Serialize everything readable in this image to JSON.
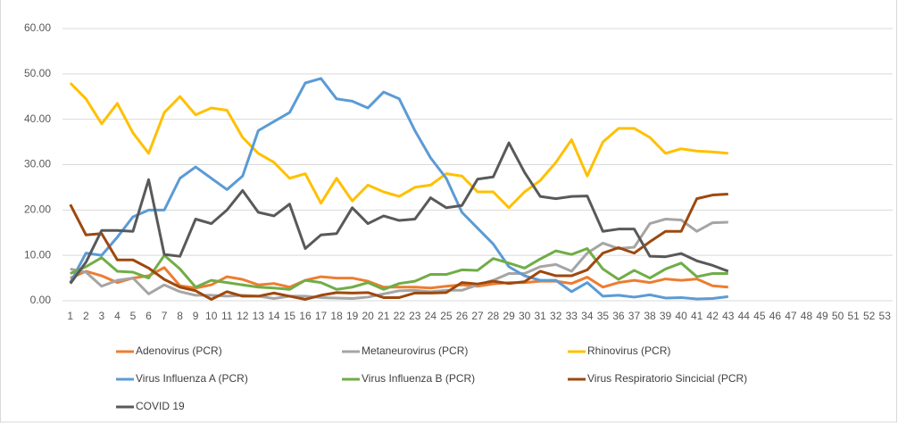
{
  "chart_data": {
    "type": "line",
    "categories": [
      "1",
      "2",
      "3",
      "4",
      "5",
      "6",
      "7",
      "8",
      "9",
      "10",
      "11",
      "12",
      "13",
      "14",
      "15",
      "16",
      "17",
      "18",
      "19",
      "20",
      "21",
      "22",
      "23",
      "24",
      "25",
      "26",
      "27",
      "28",
      "29",
      "30",
      "31",
      "32",
      "33",
      "34",
      "35",
      "36",
      "37",
      "38",
      "39",
      "40",
      "41",
      "42",
      "43",
      "44",
      "45",
      "46",
      "47",
      "48",
      "49",
      "50",
      "51",
      "52",
      "53"
    ],
    "ylim": [
      0,
      60
    ],
    "yticks": [
      {
        "value": 0,
        "label": "0.00"
      },
      {
        "value": 10,
        "label": "10.00"
      },
      {
        "value": 20,
        "label": "20.00"
      },
      {
        "value": 30,
        "label": "30.00"
      },
      {
        "value": 40,
        "label": "40.00"
      },
      {
        "value": 50,
        "label": "50.00"
      },
      {
        "value": 60,
        "label": "60.00"
      }
    ],
    "grid": true,
    "series": [
      {
        "name": "Adenovirus (PCR)",
        "color": "#ed7d31",
        "values": [
          5,
          6.5,
          5.5,
          4,
          5,
          5.5,
          7.3,
          3.3,
          2.8,
          3.5,
          5.3,
          4.7,
          3.5,
          3.8,
          3,
          4.5,
          5.3,
          5,
          5,
          4.3,
          3,
          3,
          3,
          2.8,
          3.2,
          3.5,
          3.2,
          3.7,
          4,
          4,
          4.3,
          4.3,
          3.8,
          5.2,
          3,
          4,
          4.5,
          4,
          4.8,
          4.5,
          4.8,
          3.3,
          3,
          null,
          null,
          null,
          null,
          null,
          null,
          null,
          null,
          null,
          null
        ]
      },
      {
        "name": "Metaneurovirus (PCR)",
        "color": "#a5a5a5",
        "values": [
          7,
          6.3,
          3.2,
          4.5,
          5,
          1.5,
          3.5,
          2,
          1.2,
          1.2,
          1,
          1.2,
          1,
          0.5,
          1,
          1,
          0.7,
          0.6,
          0.5,
          0.8,
          1.5,
          2.2,
          2.3,
          2,
          2.3,
          2.3,
          3.5,
          4.5,
          6,
          6,
          7.5,
          8,
          6.5,
          10.5,
          12.7,
          11.5,
          11.8,
          17,
          18,
          17.8,
          15.3,
          17.2,
          17.3,
          null,
          null,
          null,
          null,
          null,
          null,
          null,
          null,
          null,
          null
        ]
      },
      {
        "name": "Rhinovirus (PCR)",
        "color": "#ffc000",
        "values": [
          48,
          44.5,
          39,
          43.5,
          37,
          32.5,
          41.5,
          45,
          41,
          42.5,
          42,
          36,
          32.5,
          30.5,
          27,
          28,
          21.5,
          27,
          22,
          25.5,
          24,
          23,
          25,
          25.5,
          28,
          27.5,
          24,
          24,
          20.5,
          24,
          26.5,
          30.5,
          35.5,
          27.5,
          35,
          38,
          38,
          36,
          32.5,
          33.5,
          33,
          32.8,
          32.5,
          null,
          null,
          null,
          null,
          null,
          null,
          null,
          null,
          null,
          null
        ]
      },
      {
        "name": "Virus Influenza A (PCR)",
        "color": "#5b9bd5",
        "values": [
          4,
          10.5,
          10,
          14,
          18.5,
          20,
          20,
          27,
          29.5,
          27,
          24.5,
          27.5,
          37.5,
          39.5,
          41.5,
          48,
          49,
          44.5,
          44,
          42.5,
          46,
          44.5,
          37.5,
          31.5,
          27,
          19.5,
          16,
          12.5,
          7.5,
          5.5,
          4.5,
          4.5,
          2,
          4,
          1,
          1.2,
          0.8,
          1.3,
          0.6,
          0.7,
          0.4,
          0.5,
          0.9,
          null,
          null,
          null,
          null,
          null,
          null,
          null,
          null,
          null,
          null
        ]
      },
      {
        "name": "Virus Influenza B (PCR)",
        "color": "#70ad47",
        "values": [
          6,
          7.5,
          9.5,
          6.5,
          6.3,
          5,
          10,
          7,
          3,
          4.5,
          4,
          3.5,
          3,
          2.8,
          2.5,
          4.5,
          4,
          2.5,
          3,
          4,
          2.5,
          3.8,
          4.3,
          5.8,
          5.8,
          6.8,
          6.7,
          9.3,
          8.3,
          7.2,
          9.2,
          11,
          10.2,
          11.5,
          7,
          4.7,
          6.7,
          5,
          7,
          8.3,
          5.3,
          6,
          6,
          null,
          null,
          null,
          null,
          null,
          null,
          null,
          null,
          null,
          null
        ]
      },
      {
        "name": "Virus Respiratorio Sincicial (PCR)",
        "color": "#9e480e",
        "values": [
          21.2,
          14.5,
          14.8,
          9,
          9,
          7.2,
          4.7,
          3,
          2.2,
          0.3,
          2,
          1,
          1,
          1.7,
          1,
          0.3,
          1.2,
          1.8,
          1.7,
          1.8,
          0.7,
          0.7,
          1.7,
          1.7,
          1.8,
          4,
          3.7,
          4.3,
          3.8,
          4.2,
          6.5,
          5.5,
          5.5,
          6.8,
          10.5,
          11.7,
          10.5,
          13,
          15.3,
          15.3,
          22.5,
          23.3,
          23.5,
          null,
          null,
          null,
          null,
          null,
          null,
          null,
          null,
          null,
          null
        ]
      },
      {
        "name": "COVID 19",
        "color": "#595959",
        "values": [
          3.8,
          8.5,
          15.5,
          15.5,
          15.3,
          26.7,
          10.2,
          9.8,
          18,
          17,
          20,
          24.3,
          19.5,
          18.7,
          21.3,
          11.5,
          14.5,
          14.8,
          20.5,
          17,
          18.7,
          17.7,
          18,
          22.7,
          20.5,
          21,
          26.8,
          27.3,
          34.8,
          28.3,
          23,
          22.5,
          23,
          23.1,
          15.3,
          15.8,
          15.8,
          9.8,
          9.7,
          10.4,
          8.8,
          7.8,
          6.5,
          null,
          null,
          null,
          null,
          null,
          null,
          null,
          null,
          null,
          null
        ]
      }
    ]
  }
}
